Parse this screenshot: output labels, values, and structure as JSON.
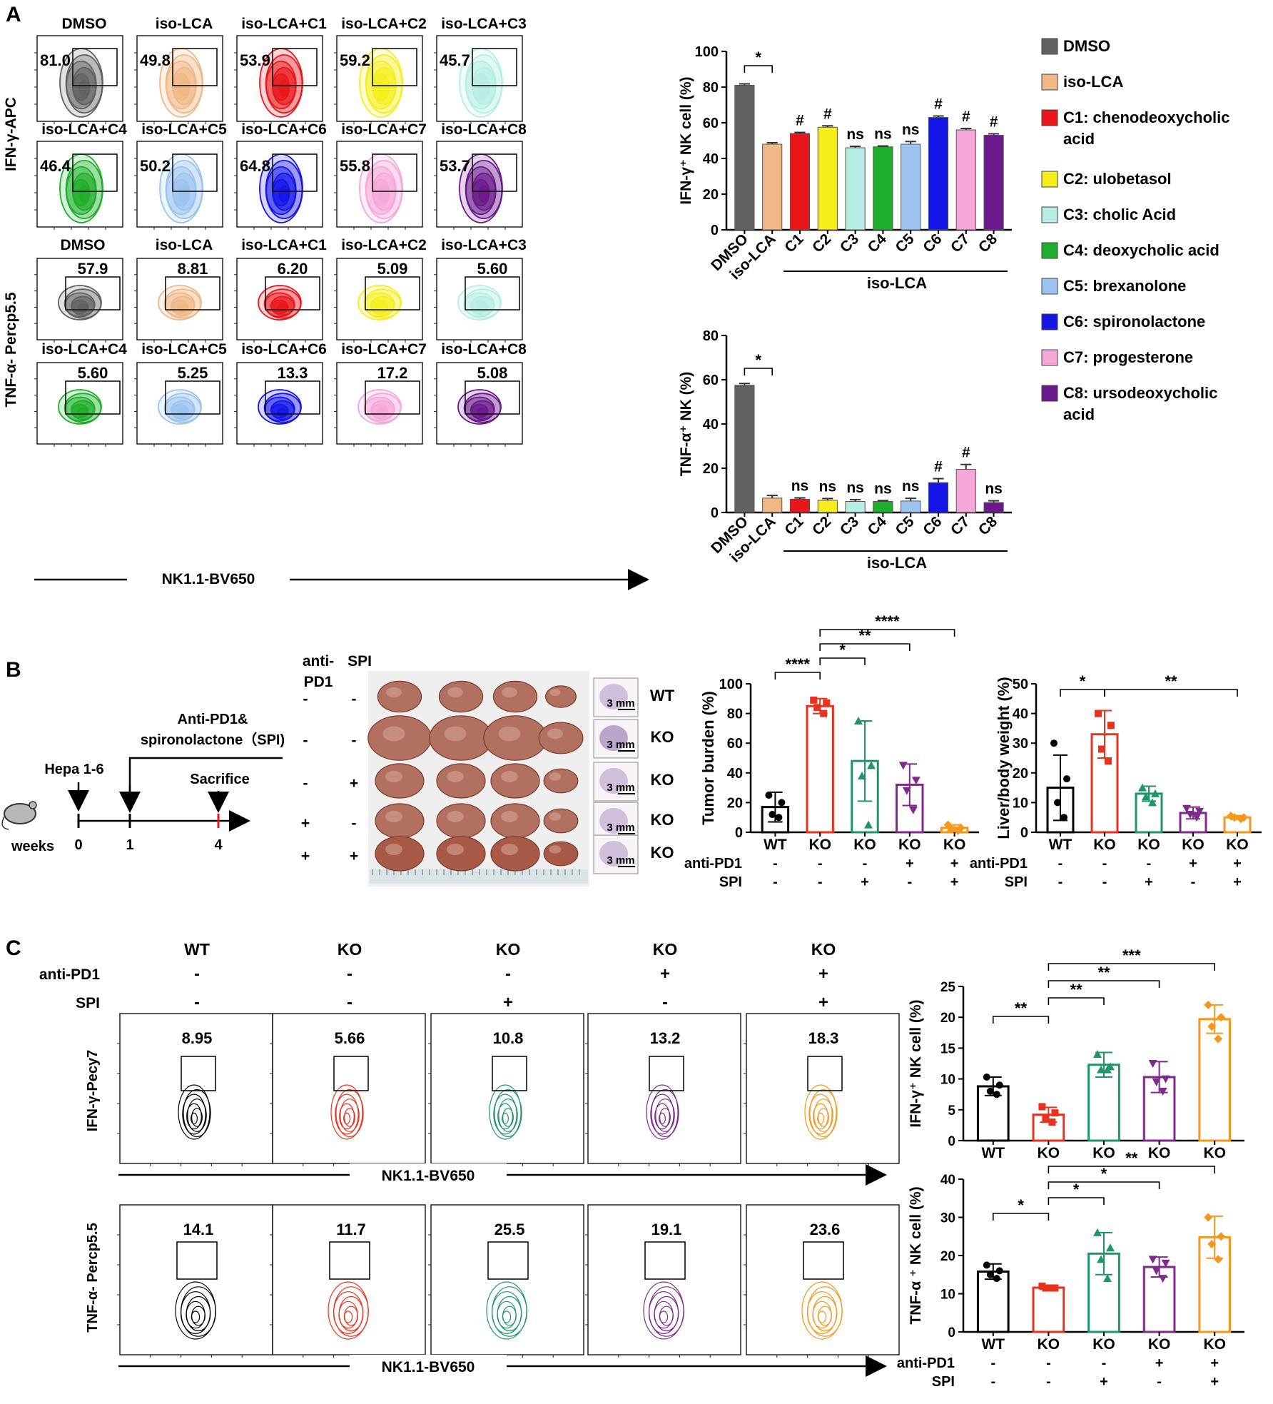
{
  "panel_labels": [
    "A",
    "B",
    "C"
  ],
  "colors": {
    "DMSO": "#616161",
    "iso-LCA": "#f0b887",
    "C1": "#e8171c",
    "C2": "#f5ee1c",
    "C3": "#b6ede3",
    "C4": "#1fae2b",
    "C5": "#9cc3ef",
    "C6": "#1515e8",
    "C7": "#f5a8d8",
    "C8": "#6a1a8a",
    "WT": "#000000",
    "KO": "#e8321e",
    "KO_SPI": "#21946a",
    "KO_PD1": "#7d2a8a",
    "KO_PD1_SPI": "#f5961e"
  },
  "panelA": {
    "flow_groups": [
      "DMSO",
      "iso-LCA",
      "iso-LCA+C1",
      "iso-LCA+C2",
      "iso-LCA+C3",
      "iso-LCA+C4",
      "iso-LCA+C5",
      "iso-LCA+C6",
      "iso-LCA+C7",
      "iso-LCA+C8"
    ],
    "ifng_values": [
      "81.0",
      "49.8",
      "53.9",
      "59.2",
      "45.7",
      "46.4",
      "50.2",
      "64.8",
      "55.8",
      "53.7"
    ],
    "tnfa_values": [
      "57.9",
      "8.81",
      "6.20",
      "5.09",
      "5.60",
      "5.60",
      "5.25",
      "13.3",
      "17.2",
      "5.08"
    ],
    "ylabel_ifng": "IFN-γ-APC",
    "ylabel_tnfa": "TNF-α- Percp5.5",
    "xlabel": "NK1.1-BV650",
    "legend": [
      {
        "key": "DMSO",
        "label": "DMSO"
      },
      {
        "key": "iso-LCA",
        "label": "iso-LCA"
      },
      {
        "key": "C1",
        "label": "C1: chenodeoxycholic acid"
      },
      {
        "key": "C2",
        "label": "C2: ulobetasol"
      },
      {
        "key": "C3",
        "label": "C3: cholic Acid"
      },
      {
        "key": "C4",
        "label": "C4: deoxycholic acid"
      },
      {
        "key": "C5",
        "label": "C5: brexanolone"
      },
      {
        "key": "C6",
        "label": "C6: spironolactone"
      },
      {
        "key": "C7",
        "label": "C7: progesterone"
      },
      {
        "key": "C8",
        "label": "C8: ursodeoxycholic acid"
      }
    ],
    "bar_group_label": "iso-LCA"
  },
  "panelB": {
    "timeline": {
      "events": [
        "Hepa 1-6",
        "Anti-PD1&",
        "spironolactone（SPI)",
        "Sacrifice"
      ],
      "ticks": [
        "0",
        "1",
        "4"
      ],
      "unit": "weeks"
    },
    "treatment_header": [
      "anti-",
      "PD1",
      "SPI"
    ],
    "rows": [
      {
        "pd1": "-",
        "spi": "-",
        "label": "WT"
      },
      {
        "pd1": "-",
        "spi": "-",
        "label": "KO"
      },
      {
        "pd1": "-",
        "spi": "+",
        "label": "KO"
      },
      {
        "pd1": "+",
        "spi": "-",
        "label": "KO"
      },
      {
        "pd1": "+",
        "spi": "+",
        "label": "KO"
      }
    ],
    "scale_bar": "3 mm"
  },
  "panelC": {
    "groups": [
      "WT",
      "KO",
      "KO",
      "KO",
      "KO"
    ],
    "row_labels": [
      "anti-PD1",
      "SPI"
    ],
    "anti_pd1": [
      "-",
      "-",
      "-",
      "+",
      "+"
    ],
    "spi": [
      "-",
      "-",
      "+",
      "-",
      "+"
    ],
    "ifng_values": [
      "8.95",
      "5.66",
      "10.8",
      "13.2",
      "18.3"
    ],
    "tnfa_values": [
      "14.1",
      "11.7",
      "25.5",
      "19.1",
      "23.6"
    ],
    "ylabel_ifng": "IFN-γ-Pecy7",
    "ylabel_tnfa": "TNF-α- Percp5.5",
    "xlabel": "NK1.1-BV650"
  },
  "chart_data": [
    {
      "type": "bar",
      "id": "A_ifng",
      "categories": [
        "DMSO",
        "iso-LCA",
        "C1",
        "C2",
        "C3",
        "C4",
        "C5",
        "C6",
        "C7",
        "C8"
      ],
      "values": [
        81,
        48,
        54,
        57.5,
        46,
        46.5,
        48,
        63,
        56,
        53
      ],
      "errors": [
        0.8,
        0.8,
        0.6,
        0.8,
        0.8,
        0.5,
        1.5,
        0.8,
        0.8,
        0.8
      ],
      "annotations": [
        "",
        "",
        "#",
        "#",
        "ns",
        "ns",
        "ns",
        "#",
        "#",
        "#"
      ],
      "sig_pairs": [
        {
          "from": 0,
          "to": 1,
          "label": "*"
        }
      ],
      "ylabel": "IFN-γ⁺ NK cell (%)",
      "ylim": [
        0,
        100
      ],
      "yticks": [
        "0",
        "20",
        "40",
        "60",
        "80",
        "100"
      ]
    },
    {
      "type": "bar",
      "id": "A_tnfa",
      "categories": [
        "DMSO",
        "iso-LCA",
        "C1",
        "C2",
        "C3",
        "C4",
        "C5",
        "C6",
        "C7",
        "C8"
      ],
      "values": [
        57.5,
        6.5,
        6,
        5.5,
        5,
        5,
        5.2,
        13.5,
        19.5,
        4.5
      ],
      "errors": [
        0.8,
        1.2,
        0.6,
        0.8,
        0.8,
        0.4,
        1.2,
        1.8,
        2.2,
        0.8
      ],
      "annotations": [
        "",
        "",
        "ns",
        "ns",
        "ns",
        "ns",
        "ns",
        "#",
        "#",
        "ns"
      ],
      "sig_pairs": [
        {
          "from": 0,
          "to": 1,
          "label": "*"
        }
      ],
      "ylabel": "TNF-α⁺ NK (%)",
      "ylim": [
        0,
        80
      ],
      "yticks": [
        "0",
        "20",
        "40",
        "60",
        "80"
      ]
    },
    {
      "type": "bar",
      "id": "B_tumor",
      "categories": [
        "WT",
        "KO",
        "KO",
        "KO",
        "KO"
      ],
      "values": [
        17,
        85,
        48,
        32,
        3
      ],
      "errors": [
        10,
        5,
        27,
        14,
        2
      ],
      "points": [
        [
          25,
          20,
          12,
          10
        ],
        [
          89,
          87,
          84,
          80
        ],
        [
          75,
          45,
          38,
          5
        ],
        [
          45,
          35,
          28,
          15
        ],
        [
          5,
          3,
          2,
          1
        ]
      ],
      "sig_pairs": [
        {
          "from": 0,
          "to": 1,
          "label": "****"
        },
        {
          "from": 1,
          "to": 2,
          "label": "*"
        },
        {
          "from": 1,
          "to": 3,
          "label": "**"
        },
        {
          "from": 1,
          "to": 4,
          "label": "****"
        }
      ],
      "ylabel": "Tumor burden (%)",
      "ylim": [
        0,
        100
      ],
      "yticks": [
        "0",
        "20",
        "40",
        "60",
        "80",
        "100"
      ],
      "row_labels": [
        "anti-PD1",
        "SPI"
      ],
      "anti_pd1": [
        "-",
        "-",
        "-",
        "+",
        "+"
      ],
      "spi": [
        "-",
        "-",
        "+",
        "-",
        "+"
      ]
    },
    {
      "type": "bar",
      "id": "B_liver",
      "categories": [
        "WT",
        "KO",
        "KO",
        "KO",
        "KO"
      ],
      "values": [
        15,
        33,
        13,
        6.5,
        5
      ],
      "errors": [
        11,
        8,
        2.5,
        2,
        0.6
      ],
      "points": [
        [
          30,
          18,
          10,
          5
        ],
        [
          40,
          36,
          28,
          24
        ],
        [
          15,
          13,
          12,
          10
        ],
        [
          8,
          7,
          6,
          5
        ],
        [
          5.5,
          5,
          5,
          4.5
        ]
      ],
      "sig_pairs": [
        {
          "from": 0,
          "to": 1,
          "label": "*"
        },
        {
          "from": 1,
          "to": [
            2,
            3,
            4
          ],
          "label": "**"
        }
      ],
      "ylabel": "Liver/body weight (%)",
      "ylim": [
        0,
        50
      ],
      "yticks": [
        "0",
        "10",
        "20",
        "30",
        "40",
        "50"
      ],
      "row_labels": [
        "anti-PD1",
        "SPI"
      ],
      "anti_pd1": [
        "-",
        "-",
        "-",
        "+",
        "+"
      ],
      "spi": [
        "-",
        "-",
        "+",
        "-",
        "+"
      ]
    },
    {
      "type": "bar",
      "id": "C_ifng",
      "categories": [
        "WT",
        "KO",
        "KO",
        "KO",
        "KO"
      ],
      "values": [
        8.8,
        4.2,
        12.3,
        10.3,
        19.7
      ],
      "errors": [
        1.5,
        1.2,
        2,
        2.5,
        2.3
      ],
      "points": [
        [
          10.3,
          9,
          8,
          7.5
        ],
        [
          5.5,
          4.5,
          3.5,
          3
        ],
        [
          14,
          12,
          11.5,
          11.5
        ],
        [
          12.5,
          10,
          9.5,
          8
        ],
        [
          22,
          20,
          18.5,
          16.5
        ]
      ],
      "sig_pairs": [
        {
          "from": 0,
          "to": 1,
          "label": "**"
        },
        {
          "from": 1,
          "to": 2,
          "label": "**"
        },
        {
          "from": 1,
          "to": 3,
          "label": "**"
        },
        {
          "from": 1,
          "to": 4,
          "label": "***"
        }
      ],
      "ylabel": "IFN-γ⁺ NK cell (%)",
      "ylim": [
        0,
        25
      ],
      "yticks": [
        "0",
        "5",
        "10",
        "15",
        "20",
        "25"
      ]
    },
    {
      "type": "bar",
      "id": "C_tnfa",
      "categories": [
        "WT",
        "KO",
        "KO",
        "KO",
        "KO"
      ],
      "values": [
        15.8,
        11.6,
        20.5,
        17,
        24.8
      ],
      "errors": [
        2,
        0.4,
        5.5,
        2.6,
        5.5
      ],
      "points": [
        [
          17.5,
          16,
          15,
          14
        ],
        [
          12,
          11.5,
          11.5,
          11.5
        ],
        [
          26,
          22,
          19,
          14
        ],
        [
          19,
          18,
          16,
          14
        ],
        [
          30,
          25,
          23,
          19
        ]
      ],
      "sig_pairs": [
        {
          "from": 0,
          "to": 1,
          "label": "*"
        },
        {
          "from": 1,
          "to": 2,
          "label": "*"
        },
        {
          "from": 1,
          "to": 3,
          "label": "*"
        },
        {
          "from": 1,
          "to": 4,
          "label": "**"
        }
      ],
      "ylabel": "TNF-α ⁺ NK cell (%)",
      "ylim": [
        0,
        40
      ],
      "yticks": [
        "0",
        "10",
        "20",
        "30",
        "40"
      ],
      "row_labels": [
        "anti-PD1",
        "SPI"
      ],
      "anti_pd1": [
        "-",
        "-",
        "-",
        "+",
        "+"
      ],
      "spi": [
        "-",
        "-",
        "+",
        "-",
        "+"
      ]
    }
  ]
}
